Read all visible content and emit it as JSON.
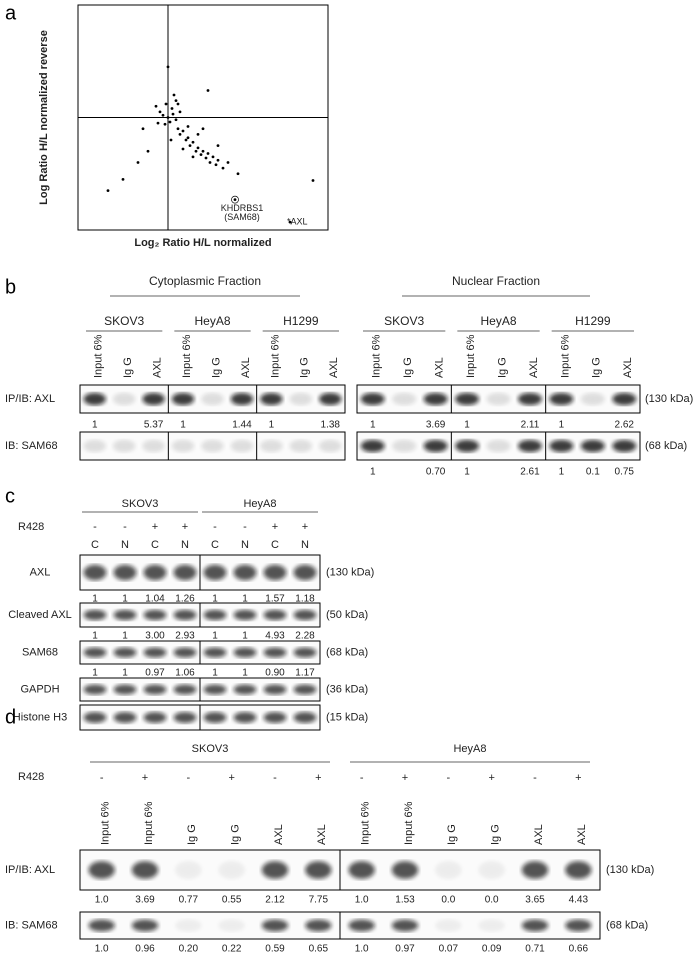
{
  "chart_data": {
    "type": "scatter",
    "panel_label": "a",
    "x_label": "Log₂ Ratio H/L normalized",
    "y_label": "Log Ratio H/L normalized reverse",
    "annotations": [
      "KHDRBS1",
      "(SAM68)",
      "*AXL"
    ],
    "xlim": [
      -0.9,
      1.6
    ],
    "ylim": [
      -1,
      1
    ],
    "x": [
      0,
      0.05,
      -0.05,
      0.02,
      -0.03,
      0.08,
      0.1,
      -0.08,
      0.04,
      0.12,
      0.15,
      0.18,
      0.2,
      0.22,
      0.25,
      0.28,
      0.3,
      0.33,
      0.35,
      0.38,
      0.4,
      0.42,
      0.45,
      0.48,
      0.5,
      0.55,
      0.6,
      0.3,
      0.25,
      0.2,
      0.15,
      0.1,
      -0.1,
      -0.2,
      -0.3,
      -0.45,
      -0.6,
      -0.25,
      0.06,
      0,
      -0.02,
      0.03,
      0.35,
      0.5,
      0.7,
      0.4,
      1.45,
      0.12,
      -0.12,
      0.08,
      0.67,
      1.22
    ],
    "y": [
      0,
      0.03,
      0.02,
      -0.04,
      -0.06,
      -0.02,
      -0.1,
      0.05,
      0.08,
      -0.15,
      -0.12,
      -0.2,
      -0.18,
      -0.25,
      -0.22,
      -0.3,
      -0.27,
      -0.33,
      -0.3,
      -0.36,
      -0.32,
      -0.4,
      -0.35,
      -0.42,
      -0.38,
      -0.45,
      -0.4,
      -0.15,
      -0.35,
      -0.08,
      -0.28,
      0.12,
      -0.05,
      -0.3,
      -0.4,
      -0.55,
      -0.65,
      -0.1,
      0.2,
      0.45,
      0.12,
      -0.2,
      -0.1,
      -0.25,
      -0.5,
      0.24,
      -0.56,
      0.05,
      0.1,
      0.15,
      -0.73,
      -0.93
    ]
  },
  "panel_b": {
    "label": "b",
    "rows": [
      {
        "label": "IP/IB: AXL",
        "size": "(130 kDa)"
      },
      {
        "label": "IB: SAM68",
        "size": "(68 kDa)"
      }
    ],
    "fractions": [
      {
        "title": "Cytoplasmic Fraction",
        "cell_lines": [
          {
            "name": "SKOV3",
            "lanes": [
              "Input 6%",
              "Ig G",
              "AXL"
            ],
            "quant": [
              [
                "1",
                null,
                "5.37"
              ],
              null
            ]
          },
          {
            "name": "HeyA8",
            "lanes": [
              "Input 6%",
              "Ig G",
              "AXL"
            ],
            "quant": [
              [
                "1",
                null,
                "1.44"
              ],
              null
            ]
          },
          {
            "name": "H1299",
            "lanes": [
              "Input 6%",
              "Ig G",
              "AXL"
            ],
            "quant": [
              [
                "1",
                null,
                "1.38"
              ],
              null
            ]
          }
        ]
      },
      {
        "title": "Nuclear Fraction",
        "cell_lines": [
          {
            "name": "SKOV3",
            "lanes": [
              "Input 6%",
              "Ig G",
              "AXL"
            ],
            "quant": [
              [
                "1",
                null,
                "3.69"
              ],
              [
                "1",
                null,
                "0.70"
              ]
            ]
          },
          {
            "name": "HeyA8",
            "lanes": [
              "Input 6%",
              "Ig G",
              "AXL"
            ],
            "quant": [
              [
                "1",
                null,
                "2.11"
              ],
              [
                "1",
                null,
                "2.61"
              ]
            ]
          },
          {
            "name": "H1299",
            "lanes": [
              "Input 6%",
              "Ig G",
              "AXL"
            ],
            "quant": [
              [
                "1",
                null,
                "2.62"
              ],
              [
                "1",
                "0.1",
                "0.75"
              ]
            ]
          }
        ]
      }
    ]
  },
  "panel_c": {
    "label": "c",
    "treatment": "R428",
    "rows": [
      {
        "label": "AXL",
        "size": "(130 kDa)"
      },
      {
        "label": "Cleaved AXL",
        "size": "(50 kDa)"
      },
      {
        "label": "SAM68",
        "size": "(68 kDa)"
      },
      {
        "label": "GAPDH",
        "size": "(36 kDa)"
      },
      {
        "label": "Histone H3",
        "size": "(15 kDa)"
      }
    ],
    "groups": [
      {
        "name": "SKOV3",
        "treatment_signs": [
          "-",
          "-",
          "+",
          "+"
        ],
        "fractions": [
          "C",
          "N",
          "C",
          "N"
        ],
        "quant": [
          [
            "1",
            "1",
            "1.04",
            "1.26"
          ],
          [
            "1",
            "1",
            "3.00",
            "2.93"
          ],
          [
            "1",
            "1",
            "0.97",
            "1.06"
          ],
          null,
          null
        ]
      },
      {
        "name": "HeyA8",
        "treatment_signs": [
          "-",
          "-",
          "+",
          "+"
        ],
        "fractions": [
          "C",
          "N",
          "C",
          "N"
        ],
        "quant": [
          [
            "1",
            "1",
            "1.57",
            "1.18"
          ],
          [
            "1",
            "1",
            "4.93",
            "2.28"
          ],
          [
            "1",
            "1",
            "0.90",
            "1.17"
          ],
          null,
          null
        ]
      }
    ]
  },
  "panel_d": {
    "label": "d",
    "treatment": "R428",
    "rows": [
      {
        "label": "IP/IB: AXL",
        "size": "(130 kDa)"
      },
      {
        "label": "IB: SAM68",
        "size": "(68 kDa)"
      }
    ],
    "groups": [
      {
        "name": "SKOV3",
        "treatment_signs": [
          "-",
          "+",
          "-",
          "+",
          "-",
          "+"
        ],
        "lanes": [
          "Input 6%",
          "Input 6%",
          "Ig G",
          "Ig G",
          "AXL",
          "AXL"
        ],
        "quant": [
          [
            "1.0",
            "3.69",
            "0.77",
            "0.55",
            "2.12",
            "7.75"
          ],
          [
            "1.0",
            "0.96",
            "0.20",
            "0.22",
            "0.59",
            "0.65"
          ]
        ]
      },
      {
        "name": "HeyA8",
        "treatment_signs": [
          "-",
          "+",
          "-",
          "+",
          "-",
          "+"
        ],
        "lanes": [
          "Input 6%",
          "Input 6%",
          "Ig G",
          "Ig G",
          "AXL",
          "AXL"
        ],
        "quant": [
          [
            "1.0",
            "1.53",
            "0.0",
            "0.0",
            "3.65",
            "4.43"
          ],
          [
            "1.0",
            "0.97",
            "0.07",
            "0.09",
            "0.71",
            "0.66"
          ]
        ]
      }
    ]
  }
}
